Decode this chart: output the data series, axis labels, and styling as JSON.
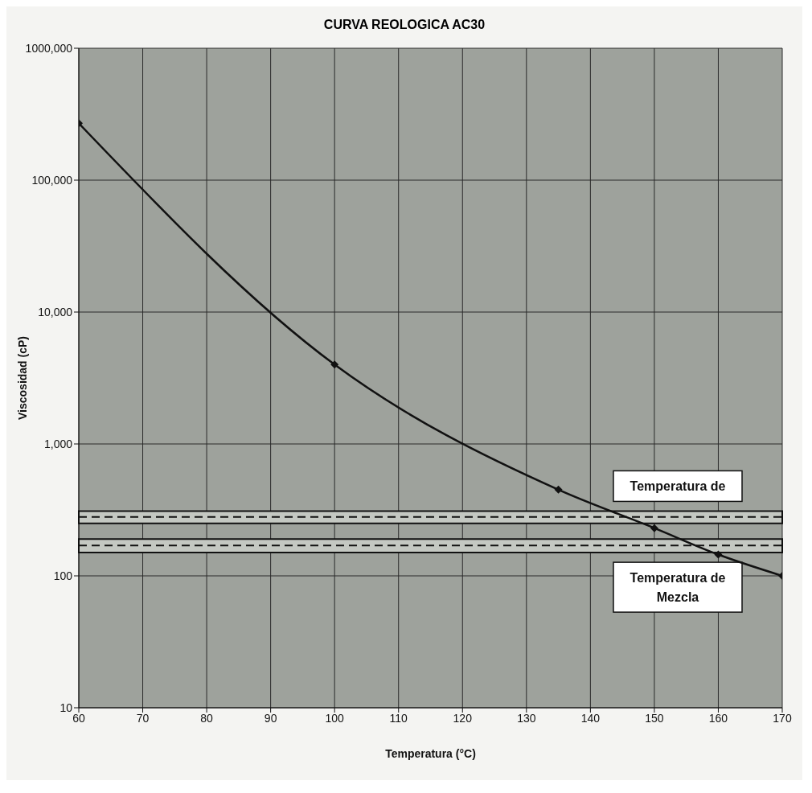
{
  "chart_data": {
    "type": "line",
    "title": "CURVA REOLOGICA AC30",
    "xlabel": "Temperatura (°C)",
    "ylabel": "Viscosidad (cP)",
    "x": [
      60,
      100,
      135,
      150,
      160,
      170
    ],
    "series": [
      {
        "color": "#111111",
        "values": [
          270000,
          4000,
          450,
          230,
          145,
          100
        ]
      }
    ],
    "xlim": [
      60,
      170
    ],
    "xticks": [
      60,
      70,
      80,
      90,
      100,
      110,
      120,
      130,
      140,
      150,
      160,
      170
    ],
    "ylim": [
      10,
      1000000
    ],
    "yticks": [
      {
        "value": 10,
        "label": "10"
      },
      {
        "value": 100,
        "label": "100"
      },
      {
        "value": 1000,
        "label": "1,000"
      },
      {
        "value": 10000,
        "label": "10,000"
      },
      {
        "value": 100000,
        "label": "100,000"
      },
      {
        "value": 1000000,
        "label": "1000,000"
      }
    ],
    "log": "y",
    "grid": true,
    "legend": false,
    "marker": "diamond",
    "line_style": "solid",
    "bands": [
      {
        "axis": "y",
        "from": 250,
        "to": 310,
        "label": "Temperatura de",
        "color": "#c4c8c2"
      },
      {
        "axis": "y",
        "from": 150,
        "to": 190,
        "label": "Temperatura de\nMezcla",
        "color": "#c4c8c2"
      }
    ],
    "ref_lines": [
      {
        "axis": "y",
        "value": 280,
        "label": null,
        "line_style": "dashed",
        "color": "#111111"
      },
      {
        "axis": "y",
        "value": 170,
        "label": null,
        "line_style": "dashed",
        "color": "#111111"
      }
    ]
  }
}
